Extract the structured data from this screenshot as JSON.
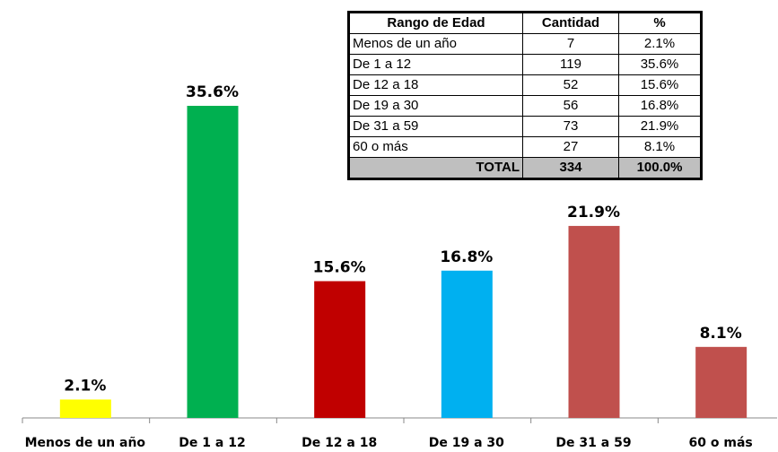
{
  "chart_data": {
    "type": "bar",
    "categories": [
      "Menos de un año",
      "De 1 a 12",
      "De 12 a 18",
      "De 19 a 30",
      "De 31 a 59",
      "60 o más"
    ],
    "values": [
      2.1,
      35.6,
      15.6,
      16.8,
      21.9,
      8.1
    ],
    "value_labels": [
      "2.1%",
      "35.6%",
      "15.6%",
      "16.8%",
      "21.9%",
      "8.1%"
    ],
    "colors": [
      "#ffff00",
      "#00b050",
      "#c00000",
      "#00b0f0",
      "#c0504d",
      "#c0504d"
    ]
  },
  "table": {
    "header": [
      "Rango de Edad",
      "Cantidad",
      "%"
    ],
    "rows": [
      [
        "Menos de un año",
        "7",
        "2.1%"
      ],
      [
        "De 1 a 12",
        "119",
        "35.6%"
      ],
      [
        "De 12 a 18",
        "52",
        "15.6%"
      ],
      [
        "De 19 a 30",
        "56",
        "16.8%"
      ],
      [
        "De 31 a 59",
        "73",
        "21.9%"
      ],
      [
        "60 o más",
        "27",
        "8.1%"
      ]
    ],
    "total": [
      "TOTAL",
      "334",
      "100.0%"
    ]
  }
}
